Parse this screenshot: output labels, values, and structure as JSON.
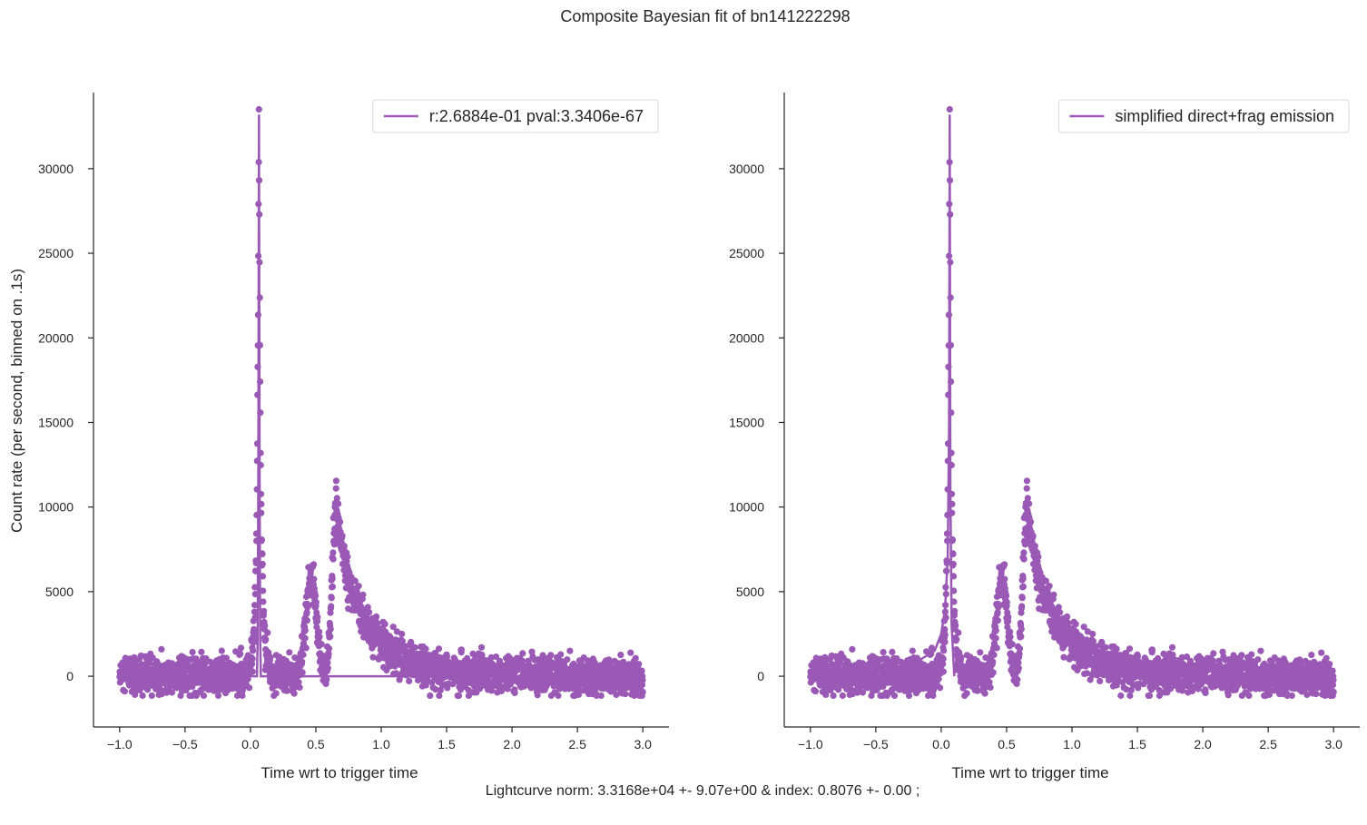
{
  "figure": {
    "suptitle": "Composite Bayesian fit of bn141222298",
    "footer": "Lightcurve norm: 3.3168e+04 +- 9.07e+00 & index: 0.8076 +- 0.00 ;"
  },
  "colors": {
    "series": "#9b59b6",
    "axis": "#262626"
  },
  "chart_data": [
    {
      "type": "scatter",
      "xlabel": "Time wrt to trigger time",
      "ylabel": "Count rate (per second, binned on .1s)",
      "xlim": [
        -1.2,
        3.2
      ],
      "ylim": [
        -3000,
        34500
      ],
      "xticks": [
        -1.0,
        -0.5,
        0.0,
        0.5,
        1.0,
        1.5,
        2.0,
        2.5,
        3.0
      ],
      "xtick_labels": [
        "−1.0",
        "−0.5",
        "0.0",
        "0.5",
        "1.0",
        "1.5",
        "2.0",
        "2.5",
        "3.0"
      ],
      "yticks": [
        0,
        5000,
        10000,
        15000,
        20000,
        25000,
        30000
      ],
      "ytick_labels": [
        "0",
        "5000",
        "10000",
        "15000",
        "20000",
        "25000",
        "30000"
      ],
      "grid": false,
      "legend": {
        "placement": "top-right",
        "label": "r:2.6884e-01  pval:3.3406e-67"
      },
      "fit_model": "narrow-spike",
      "data_model": {
        "range": [
          -1.0,
          3.0
        ],
        "n_points": 2600,
        "noise_sd": 550,
        "components": [
          {
            "kind": "spike",
            "center": 0.065,
            "amplitude": 30500,
            "decay": 0.012
          },
          {
            "kind": "gaussian",
            "center": 0.07,
            "amplitude": 3500,
            "width": 0.035
          },
          {
            "kind": "gaussian",
            "center": 0.465,
            "amplitude": 5800,
            "width": 0.04
          },
          {
            "kind": "fred",
            "center": 0.655,
            "amplitude": 9800,
            "rise": 0.03,
            "decay": 0.35
          }
        ]
      },
      "fit_curve": {
        "x": [
          -1.0,
          0.05,
          0.055,
          0.06,
          0.065,
          0.07,
          0.075,
          0.08,
          1.0,
          3.0
        ],
        "y": [
          0,
          0,
          2000,
          12000,
          33200,
          12000,
          2000,
          0,
          0,
          0
        ]
      }
    },
    {
      "type": "scatter",
      "xlabel": "Time wrt to trigger time",
      "ylabel": "",
      "xlim": [
        -1.2,
        3.2
      ],
      "ylim": [
        -3000,
        34500
      ],
      "xticks": [
        -1.0,
        -0.5,
        0.0,
        0.5,
        1.0,
        1.5,
        2.0,
        2.5,
        3.0
      ],
      "xtick_labels": [
        "−1.0",
        "−0.5",
        "0.0",
        "0.5",
        "1.0",
        "1.5",
        "2.0",
        "2.5",
        "3.0"
      ],
      "yticks": [
        0,
        5000,
        10000,
        15000,
        20000,
        25000,
        30000
      ],
      "ytick_labels": [
        "0",
        "5000",
        "10000",
        "15000",
        "20000",
        "25000",
        "30000"
      ],
      "grid": false,
      "legend": {
        "placement": "top-right",
        "label": "simplified direct+frag emission"
      },
      "fit_model": "direct-frag",
      "data_model": {
        "range": [
          -1.0,
          3.0
        ],
        "n_points": 2600,
        "noise_sd": 550,
        "components": [
          {
            "kind": "spike",
            "center": 0.065,
            "amplitude": 30500,
            "decay": 0.012
          },
          {
            "kind": "gaussian",
            "center": 0.07,
            "amplitude": 3500,
            "width": 0.035
          },
          {
            "kind": "gaussian",
            "center": 0.465,
            "amplitude": 5800,
            "width": 0.04
          },
          {
            "kind": "fred",
            "center": 0.655,
            "amplitude": 9800,
            "rise": 0.03,
            "decay": 0.35
          }
        ]
      },
      "fit_curve": {
        "x": [
          -1.0,
          -0.5,
          -0.2,
          -0.05,
          0.0,
          0.03,
          0.05,
          0.06,
          0.065,
          0.07,
          0.08,
          0.1
        ],
        "y": [
          0,
          300,
          800,
          1500,
          2500,
          4000,
          7000,
          15000,
          33200,
          11000,
          3000,
          0
        ]
      }
    }
  ]
}
